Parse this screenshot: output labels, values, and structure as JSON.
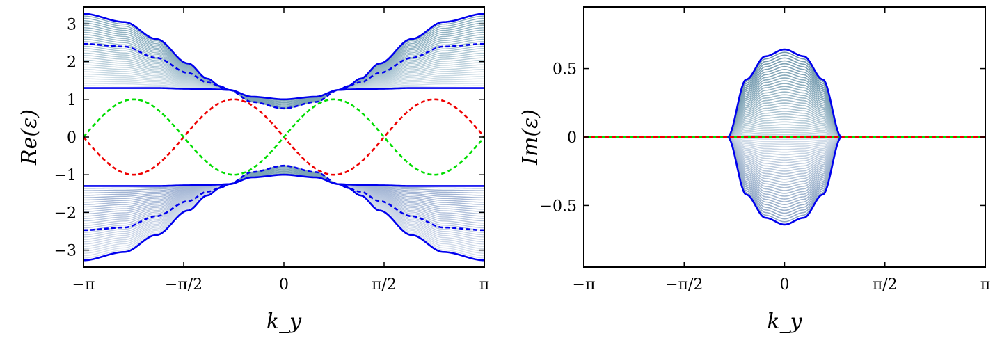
{
  "chart_data": [
    {
      "type": "line",
      "title": "",
      "xlabel": "k_y",
      "ylabel": "Re(ε)",
      "xlim": [
        -3.14159,
        3.14159
      ],
      "ylim": [
        -3.45,
        3.45
      ],
      "x_ticks": [
        -3.14159,
        -1.5708,
        0,
        1.5708,
        3.14159
      ],
      "x_tick_labels": [
        "−π",
        "−π/2",
        "0",
        "π/2",
        "π"
      ],
      "y_ticks": [
        -3,
        -2,
        -1,
        0,
        1,
        2,
        3
      ],
      "y_tick_labels": [
        "−3",
        "−2",
        "−1",
        "0",
        "1",
        "2",
        "3"
      ],
      "grid": false,
      "legend": "none",
      "band_params": {
        "bulk_lines": 32,
        "exceptional_point_ky": 0.86
      },
      "series": [
        {
          "style": "solid",
          "color": "#0000ee",
          "role": "band-edge",
          "x": [
            -3.14159,
            -2.5,
            -2.0,
            -1.5,
            -1.2,
            -1.0,
            -0.86
          ],
          "y": [
            3.27,
            3.05,
            2.6,
            1.95,
            1.55,
            1.35,
            1.25
          ]
        },
        {
          "style": "solid",
          "color": "#0000ee",
          "role": "band-edge",
          "x": [
            -3.14159,
            -2.0,
            -1.5,
            -1.2,
            -1.0,
            -0.86
          ],
          "y": [
            1.3,
            1.3,
            1.28,
            1.27,
            1.26,
            1.25
          ]
        },
        {
          "style": "dashed",
          "color": "#0000ee",
          "role": "edge-state",
          "x": [
            -3.14159,
            -2.5,
            -2.0,
            -1.5,
            -1.2,
            -0.86
          ],
          "y": [
            2.47,
            2.4,
            2.1,
            1.7,
            1.45,
            1.25
          ]
        },
        {
          "style": "solid",
          "color": "#0000ee",
          "role": "gap-band",
          "x": [
            -0.86,
            -0.5,
            0,
            0.5,
            0.86
          ],
          "y": [
            1.25,
            1.07,
            1.0,
            1.07,
            1.25
          ]
        },
        {
          "style": "dashed",
          "color": "#0000ee",
          "role": "gap-band",
          "x": [
            -0.86,
            -0.5,
            0,
            0.5,
            0.86
          ],
          "y": [
            1.25,
            0.93,
            0.76,
            0.93,
            1.25
          ]
        },
        {
          "style": "dashed",
          "color": "#ee0000",
          "role": "edge-state",
          "x": [
            -3.14159,
            -1.5708,
            0,
            1.5708,
            3.14159
          ],
          "y": [
            0,
            1,
            0,
            -1,
            0
          ]
        },
        {
          "style": "dashed",
          "color": "#00dd00",
          "role": "edge-state",
          "x": [
            -3.14159,
            -1.5708,
            0,
            1.5708,
            3.14159
          ],
          "y": [
            0,
            -1,
            0,
            1,
            0
          ]
        }
      ]
    },
    {
      "type": "line",
      "title": "",
      "xlabel": "k_y",
      "ylabel": "Im(ε)",
      "xlim": [
        -3.14159,
        3.14159
      ],
      "ylim": [
        -0.95,
        0.95
      ],
      "x_ticks": [
        -3.14159,
        -1.5708,
        0,
        1.5708,
        3.14159
      ],
      "x_tick_labels": [
        "−π",
        "−π/2",
        "0",
        "π/2",
        "π"
      ],
      "y_ticks": [
        -0.5,
        0,
        0.5
      ],
      "y_tick_labels": [
        "−0.5",
        "0",
        "0.5"
      ],
      "grid": false,
      "legend": "none",
      "band_params": {
        "bulk_lines": 32,
        "exceptional_point_ky": 0.89
      },
      "series": [
        {
          "style": "solid",
          "color": "#0000ee",
          "role": "envelope-upper",
          "x": [
            -0.89,
            -0.6,
            -0.3,
            0,
            0.3,
            0.6,
            0.89
          ],
          "y": [
            0,
            0.42,
            0.59,
            0.64,
            0.59,
            0.42,
            0
          ]
        },
        {
          "style": "solid",
          "color": "#0000ee",
          "role": "envelope-lower",
          "x": [
            -0.89,
            -0.6,
            -0.3,
            0,
            0.3,
            0.6,
            0.89
          ],
          "y": [
            0,
            -0.42,
            -0.59,
            -0.64,
            -0.59,
            -0.42,
            0
          ]
        },
        {
          "style": "dashed",
          "color": "#ee0000",
          "role": "edge-state",
          "x": [
            -3.14159,
            3.14159
          ],
          "y": [
            0,
            0
          ]
        },
        {
          "style": "solid",
          "color": "#00dd00",
          "role": "edge-state",
          "x": [
            -3.14159,
            3.14159
          ],
          "y": [
            0,
            0
          ]
        }
      ]
    }
  ]
}
